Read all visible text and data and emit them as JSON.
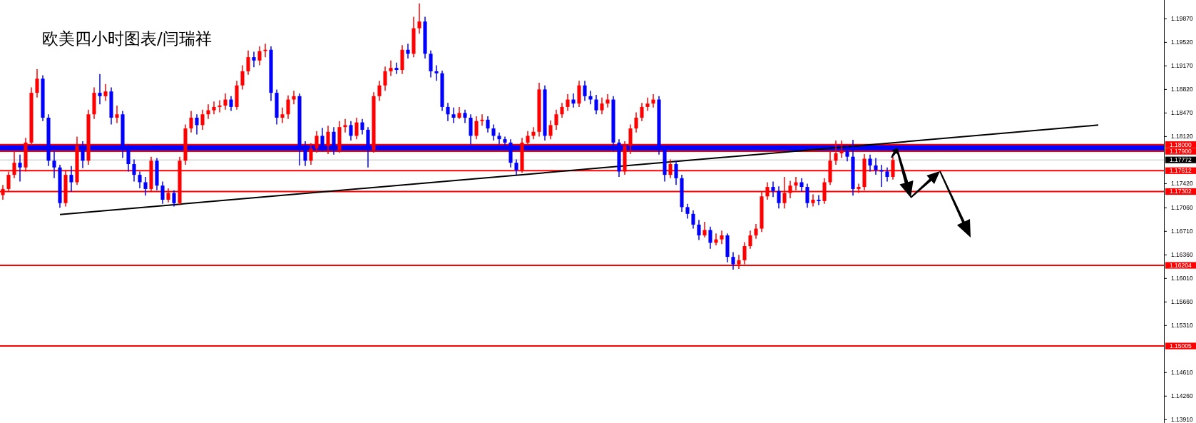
{
  "chart_data": {
    "type": "candlestick",
    "title": "欧美四小时图表/闫瑞祥",
    "categories": [
      null,
      null,
      null,
      null,
      null,
      null,
      null,
      null,
      null,
      null,
      null,
      null,
      null,
      null,
      null,
      null,
      null,
      null,
      null,
      null,
      null,
      null,
      null,
      null,
      null,
      null,
      null,
      null,
      null,
      null,
      null,
      null,
      null,
      null,
      null,
      null,
      null,
      null,
      null,
      null,
      null,
      null,
      null,
      null,
      null,
      null,
      null,
      null,
      null,
      null,
      null,
      null,
      null,
      null,
      null,
      null,
      null,
      null,
      null,
      null,
      null,
      null,
      null,
      null,
      null,
      null,
      null,
      null,
      null,
      null,
      null,
      null,
      null,
      null,
      null,
      null,
      null,
      null,
      null,
      null,
      null,
      null,
      null,
      null,
      null,
      null,
      null,
      null,
      null,
      null,
      null,
      null,
      null,
      null,
      null,
      null,
      null,
      null,
      null,
      null,
      null,
      null,
      null,
      null,
      null,
      null,
      null,
      null,
      null,
      null,
      null,
      null,
      null,
      null,
      null,
      null,
      null,
      null,
      null,
      null,
      null,
      null,
      null,
      null,
      null,
      null,
      null,
      null,
      null,
      null,
      null,
      null,
      null,
      null,
      null,
      null,
      null,
      null,
      null,
      null,
      null,
      null,
      null,
      null,
      null,
      null,
      null,
      null,
      null,
      null,
      null,
      null,
      null,
      null,
      null,
      null,
      null,
      null,
      null,
      null,
      null,
      null,
      null,
      null,
      null,
      null,
      null,
      null,
      null,
      null,
      null,
      null,
      null,
      null,
      null,
      null,
      null,
      null,
      null,
      null,
      null,
      null,
      null,
      null,
      null,
      null,
      null,
      null,
      null,
      null,
      null,
      null,
      null,
      null,
      null,
      null,
      null,
      null,
      null,
      null,
      null,
      null,
      null,
      null
    ],
    "ohlc": [
      [
        1.1725,
        1.174,
        1.1718,
        1.1734
      ],
      [
        1.1734,
        1.176,
        1.173,
        1.1755
      ],
      [
        1.1755,
        1.179,
        1.175,
        1.1773
      ],
      [
        1.1773,
        1.1785,
        1.1745,
        1.1766
      ],
      [
        1.1766,
        1.181,
        1.176,
        1.1803
      ],
      [
        1.1803,
        1.1885,
        1.1798,
        1.1877
      ],
      [
        1.1877,
        1.1912,
        1.187,
        1.1898
      ],
      [
        1.1898,
        1.1903,
        1.1835,
        1.184
      ],
      [
        1.184,
        1.1845,
        1.1768,
        1.1776
      ],
      [
        1.1776,
        1.179,
        1.175,
        1.1766
      ],
      [
        1.1766,
        1.177,
        1.1706,
        1.1713
      ],
      [
        1.1713,
        1.1762,
        1.1708,
        1.1755
      ],
      [
        1.1755,
        1.1768,
        1.173,
        1.1744
      ],
      [
        1.1744,
        1.1812,
        1.174,
        1.1798
      ],
      [
        1.1798,
        1.1805,
        1.1765,
        1.1776
      ],
      [
        1.1776,
        1.1852,
        1.177,
        1.1845
      ],
      [
        1.1845,
        1.1885,
        1.1838,
        1.1877
      ],
      [
        1.1877,
        1.1905,
        1.186,
        1.1872
      ],
      [
        1.1872,
        1.189,
        1.1865,
        1.1879
      ],
      [
        1.1879,
        1.1885,
        1.183,
        1.184
      ],
      [
        1.184,
        1.1858,
        1.1832,
        1.1845
      ],
      [
        1.1845,
        1.185,
        1.178,
        1.1792
      ],
      [
        1.1792,
        1.18,
        1.176,
        1.1771
      ],
      [
        1.1771,
        1.1778,
        1.1745,
        1.1755
      ],
      [
        1.1755,
        1.176,
        1.1735,
        1.1744
      ],
      [
        1.1744,
        1.1752,
        1.1724,
        1.1734
      ],
      [
        1.1734,
        1.1782,
        1.173,
        1.1776
      ],
      [
        1.1776,
        1.178,
        1.1732,
        1.1739
      ],
      [
        1.1739,
        1.1745,
        1.1712,
        1.1718
      ],
      [
        1.1718,
        1.1735,
        1.1714,
        1.1728
      ],
      [
        1.1728,
        1.1732,
        1.1708,
        1.1713
      ],
      [
        1.1713,
        1.1782,
        1.171,
        1.1776
      ],
      [
        1.1776,
        1.183,
        1.177,
        1.1824
      ],
      [
        1.1824,
        1.185,
        1.1818,
        1.184
      ],
      [
        1.184,
        1.1845,
        1.1815,
        1.1829
      ],
      [
        1.1829,
        1.1852,
        1.1822,
        1.1845
      ],
      [
        1.1845,
        1.186,
        1.1838,
        1.1851
      ],
      [
        1.1851,
        1.1864,
        1.1845,
        1.1856
      ],
      [
        1.1856,
        1.1866,
        1.1848,
        1.1858
      ],
      [
        1.1858,
        1.1876,
        1.1852,
        1.1867
      ],
      [
        1.1867,
        1.1872,
        1.185,
        1.1856
      ],
      [
        1.1856,
        1.1895,
        1.1852,
        1.1888
      ],
      [
        1.1888,
        1.1918,
        1.1882,
        1.1909
      ],
      [
        1.1909,
        1.194,
        1.1904,
        1.193
      ],
      [
        1.193,
        1.1938,
        1.1915,
        1.1925
      ],
      [
        1.1925,
        1.1946,
        1.1918,
        1.1939
      ],
      [
        1.1939,
        1.195,
        1.193,
        1.1941
      ],
      [
        1.1941,
        1.1946,
        1.1865,
        1.1877
      ],
      [
        1.1877,
        1.1882,
        1.183,
        1.184
      ],
      [
        1.184,
        1.1855,
        1.1832,
        1.1845
      ],
      [
        1.1845,
        1.1873,
        1.1838,
        1.1867
      ],
      [
        1.1867,
        1.188,
        1.186,
        1.1872
      ],
      [
        1.1872,
        1.1876,
        1.1769,
        1.1798
      ],
      [
        1.1798,
        1.1805,
        1.1768,
        1.1776
      ],
      [
        1.1776,
        1.1802,
        1.177,
        1.1794
      ],
      [
        1.1794,
        1.182,
        1.1788,
        1.1813
      ],
      [
        1.1813,
        1.1825,
        1.179,
        1.1798
      ],
      [
        1.1798,
        1.1828,
        1.1786,
        1.1819
      ],
      [
        1.1819,
        1.1826,
        1.1785,
        1.1792
      ],
      [
        1.1792,
        1.1835,
        1.1788,
        1.1826
      ],
      [
        1.1826,
        1.1838,
        1.1818,
        1.1829
      ],
      [
        1.1829,
        1.1835,
        1.1806,
        1.1813
      ],
      [
        1.1813,
        1.184,
        1.1808,
        1.1833
      ],
      [
        1.1833,
        1.1838,
        1.1815,
        1.1822
      ],
      [
        1.1822,
        1.1826,
        1.1766,
        1.1792
      ],
      [
        1.1792,
        1.1878,
        1.1788,
        1.1872
      ],
      [
        1.1872,
        1.1895,
        1.1865,
        1.1888
      ],
      [
        1.1888,
        1.1916,
        1.188,
        1.1909
      ],
      [
        1.1909,
        1.1925,
        1.1902,
        1.1914
      ],
      [
        1.1914,
        1.1922,
        1.1905,
        1.1911
      ],
      [
        1.1911,
        1.1948,
        1.1905,
        1.1941
      ],
      [
        1.1941,
        1.195,
        1.1928,
        1.1935
      ],
      [
        1.1935,
        1.199,
        1.193,
        1.1973
      ],
      [
        1.1973,
        1.201,
        1.1965,
        1.1983
      ],
      [
        1.1983,
        1.199,
        1.1928,
        1.1935
      ],
      [
        1.1935,
        1.194,
        1.19,
        1.1909
      ],
      [
        1.1909,
        1.1918,
        1.1895,
        1.1906
      ],
      [
        1.1906,
        1.191,
        1.185,
        1.1856
      ],
      [
        1.1856,
        1.1862,
        1.1835,
        1.1845
      ],
      [
        1.1845,
        1.1855,
        1.1832,
        1.184
      ],
      [
        1.184,
        1.1856,
        1.1838,
        1.1847
      ],
      [
        1.1847,
        1.1852,
        1.1832,
        1.184
      ],
      [
        1.184,
        1.1845,
        1.18,
        1.1813
      ],
      [
        1.1813,
        1.1842,
        1.1808,
        1.1835
      ],
      [
        1.1835,
        1.1845,
        1.1828,
        1.1837
      ],
      [
        1.1837,
        1.1842,
        1.1818,
        1.1824
      ],
      [
        1.1824,
        1.183,
        1.1806,
        1.1813
      ],
      [
        1.1813,
        1.1818,
        1.18,
        1.1808
      ],
      [
        1.1808,
        1.1812,
        1.1795,
        1.1803
      ],
      [
        1.1803,
        1.1808,
        1.1766,
        1.1773
      ],
      [
        1.1773,
        1.1778,
        1.1755,
        1.1762
      ],
      [
        1.1762,
        1.181,
        1.1758,
        1.1803
      ],
      [
        1.1803,
        1.182,
        1.1798,
        1.1813
      ],
      [
        1.1813,
        1.1826,
        1.1808,
        1.1819
      ],
      [
        1.1819,
        1.1892,
        1.1812,
        1.1882
      ],
      [
        1.1882,
        1.1888,
        1.1806,
        1.1813
      ],
      [
        1.1813,
        1.1836,
        1.1808,
        1.1829
      ],
      [
        1.1829,
        1.1852,
        1.1822,
        1.1845
      ],
      [
        1.1845,
        1.1862,
        1.184,
        1.1856
      ],
      [
        1.1856,
        1.1875,
        1.185,
        1.1867
      ],
      [
        1.1867,
        1.1876,
        1.1855,
        1.1861
      ],
      [
        1.1861,
        1.1895,
        1.1856,
        1.1888
      ],
      [
        1.1888,
        1.1895,
        1.1865,
        1.1872
      ],
      [
        1.1872,
        1.188,
        1.186,
        1.1867
      ],
      [
        1.1867,
        1.1874,
        1.1845,
        1.1851
      ],
      [
        1.1851,
        1.187,
        1.1845,
        1.1861
      ],
      [
        1.1861,
        1.1875,
        1.1855,
        1.1867
      ],
      [
        1.1867,
        1.1872,
        1.179,
        1.1803
      ],
      [
        1.1803,
        1.1808,
        1.1752,
        1.176
      ],
      [
        1.176,
        1.1805,
        1.1755,
        1.1798
      ],
      [
        1.1798,
        1.183,
        1.1786,
        1.1824
      ],
      [
        1.1824,
        1.1848,
        1.1818,
        1.184
      ],
      [
        1.184,
        1.1862,
        1.1835,
        1.1856
      ],
      [
        1.1856,
        1.187,
        1.185,
        1.1861
      ],
      [
        1.1861,
        1.1875,
        1.1855,
        1.1867
      ],
      [
        1.1867,
        1.1872,
        1.1785,
        1.1792
      ],
      [
        1.1792,
        1.1798,
        1.1745,
        1.1755
      ],
      [
        1.1755,
        1.1778,
        1.175,
        1.1771
      ],
      [
        1.1771,
        1.1776,
        1.174,
        1.175
      ],
      [
        1.175,
        1.1755,
        1.17,
        1.1707
      ],
      [
        1.1707,
        1.1712,
        1.169,
        1.1697
      ],
      [
        1.1697,
        1.1702,
        1.1675,
        1.1681
      ],
      [
        1.1681,
        1.1688,
        1.1658,
        1.1665
      ],
      [
        1.1665,
        1.1685,
        1.1662,
        1.1673
      ],
      [
        1.1673,
        1.1678,
        1.1645,
        1.1654
      ],
      [
        1.1654,
        1.1668,
        1.165,
        1.1659
      ],
      [
        1.1659,
        1.1672,
        1.1652,
        1.1665
      ],
      [
        1.1665,
        1.1668,
        1.1625,
        1.1633
      ],
      [
        1.1633,
        1.164,
        1.1614,
        1.1622
      ],
      [
        1.1622,
        1.1636,
        1.1615,
        1.1628
      ],
      [
        1.1628,
        1.1655,
        1.1622,
        1.1649
      ],
      [
        1.1649,
        1.1672,
        1.1645,
        1.1665
      ],
      [
        1.1665,
        1.1682,
        1.166,
        1.1675
      ],
      [
        1.1675,
        1.173,
        1.167,
        1.1723
      ],
      [
        1.1723,
        1.1744,
        1.1718,
        1.1737
      ],
      [
        1.1737,
        1.1745,
        1.1722,
        1.1731
      ],
      [
        1.1731,
        1.1738,
        1.1705,
        1.1713
      ],
      [
        1.1713,
        1.1752,
        1.1705,
        1.1728
      ],
      [
        1.1728,
        1.1746,
        1.172,
        1.1739
      ],
      [
        1.1739,
        1.1752,
        1.1732,
        1.1744
      ],
      [
        1.1744,
        1.175,
        1.173,
        1.1737
      ],
      [
        1.1737,
        1.1742,
        1.1706,
        1.1713
      ],
      [
        1.1713,
        1.1726,
        1.1708,
        1.1718
      ],
      [
        1.1718,
        1.1725,
        1.171,
        1.1716
      ],
      [
        1.1716,
        1.175,
        1.1712,
        1.1744
      ],
      [
        1.1744,
        1.179,
        1.174,
        1.1776
      ],
      [
        1.1776,
        1.1806,
        1.177,
        1.1787
      ],
      [
        1.1787,
        1.1806,
        1.178,
        1.179
      ],
      [
        1.179,
        1.1798,
        1.1775,
        1.1782
      ],
      [
        1.1782,
        1.1807,
        1.1724,
        1.1734
      ],
      [
        1.1734,
        1.1742,
        1.1728,
        1.1737
      ],
      [
        1.1737,
        1.1786,
        1.1732,
        1.1779
      ],
      [
        1.1779,
        1.1785,
        1.176,
        1.1769
      ],
      [
        1.1769,
        1.178,
        1.1755,
        1.1762
      ],
      [
        1.1762,
        1.177,
        1.1737,
        1.176
      ],
      [
        1.176,
        1.1766,
        1.1745,
        1.1752
      ],
      [
        1.1752,
        1.1782,
        1.1748,
        1.1777
      ],
      null,
      null,
      null,
      null,
      null,
      null,
      null,
      null,
      null,
      null,
      null,
      null,
      null,
      null,
      null,
      null,
      null,
      null,
      null,
      null,
      null,
      null,
      null,
      null,
      null,
      null,
      null,
      null,
      null,
      null,
      null,
      null,
      null,
      null,
      null,
      null,
      null,
      null,
      null,
      null,
      null,
      null,
      null,
      null,
      null,
      null,
      null
    ],
    "series": [
      {
        "type": "line",
        "color": "#000000",
        "values": [
          null,
          null,
          null,
          null,
          null,
          null,
          null,
          null,
          null,
          null,
          1.1696,
          null,
          null,
          null,
          null,
          null,
          null,
          null,
          null,
          null,
          null,
          null,
          null,
          null,
          null,
          null,
          null,
          null,
          null,
          null,
          null,
          null,
          null,
          null,
          null,
          null,
          null,
          null,
          null,
          null,
          null,
          null,
          null,
          null,
          null,
          null,
          null,
          null,
          null,
          null,
          null,
          null,
          null,
          null,
          null,
          null,
          null,
          null,
          null,
          null,
          null,
          null,
          null,
          null,
          null,
          null,
          null,
          null,
          null,
          null,
          null,
          null,
          null,
          null,
          null,
          null,
          null,
          null,
          null,
          null,
          null,
          null,
          null,
          null,
          null,
          null,
          null,
          null,
          null,
          null,
          null,
          null,
          null,
          null,
          null,
          null,
          null,
          null,
          null,
          null,
          null,
          null,
          null,
          null,
          null,
          null,
          null,
          null,
          null,
          null,
          null,
          null,
          null,
          null,
          null,
          null,
          null,
          null,
          null,
          null,
          null,
          null,
          null,
          null,
          null,
          null,
          null,
          null,
          null,
          null,
          null,
          null,
          null,
          null,
          null,
          null,
          null,
          null,
          null,
          null,
          null,
          null,
          null,
          null,
          null,
          null,
          null,
          null,
          null,
          null,
          null,
          null,
          null,
          null,
          null,
          null,
          null,
          null,
          null,
          null,
          null,
          null,
          null,
          null,
          null,
          null,
          null,
          null,
          null,
          null,
          null,
          null,
          null,
          null,
          null,
          null,
          null,
          null,
          null,
          null,
          null,
          null,
          null,
          null,
          null,
          null,
          null,
          null,
          null,
          null,
          null,
          null,
          1.1829,
          null,
          null,
          null,
          null,
          null,
          null,
          null,
          null,
          null,
          null,
          null
        ]
      }
    ],
    "ylim": [
      1.1386,
      1.2015
    ],
    "yticks": [
      {
        "value": 1.1987,
        "label": "1.19870"
      },
      {
        "value": 1.1952,
        "label": "1.19520"
      },
      {
        "value": 1.1917,
        "label": "1.19170"
      },
      {
        "value": 1.1882,
        "label": "1.18820"
      },
      {
        "value": 1.1847,
        "label": "1.18470"
      },
      {
        "value": 1.1812,
        "label": "1.18120"
      },
      {
        "value": 1.1742,
        "label": "1.17420"
      },
      {
        "value": 1.1706,
        "label": "1.17060"
      },
      {
        "value": 1.1671,
        "label": "1.16710"
      },
      {
        "value": 1.1636,
        "label": "1.16360"
      },
      {
        "value": 1.1601,
        "label": "1.16010"
      },
      {
        "value": 1.1566,
        "label": "1.15660"
      },
      {
        "value": 1.1531,
        "label": "1.15310"
      },
      {
        "value": 1.1461,
        "label": "1.14610"
      },
      {
        "value": 1.1426,
        "label": "1.14260"
      },
      {
        "value": 1.1391,
        "label": "1.13910"
      }
    ],
    "bands": [
      {
        "axis": "y",
        "from": 1.179,
        "to": 1.18,
        "color": "#0000ff"
      }
    ],
    "ref_lines": [
      {
        "axis": "y",
        "value": 1.18,
        "label": "1.18000",
        "color": "#ff0000"
      },
      {
        "axis": "y",
        "value": 1.179,
        "label": "1.17900",
        "color": "#ff0000"
      },
      {
        "axis": "y",
        "value": 1.17772,
        "label": "1.17772",
        "color": "#c0c0c0"
      },
      {
        "axis": "y",
        "value": 1.17612,
        "label": "1.17612",
        "color": "#ff0000"
      },
      {
        "axis": "y",
        "value": 1.17302,
        "label": "1.17302",
        "color": "#ff0000"
      },
      {
        "axis": "y",
        "value": 1.16204,
        "label": "1.16204",
        "color": "#ff0000"
      },
      {
        "axis": "y",
        "value": 1.15005,
        "label": "1.15005",
        "color": "#ff0000"
      }
    ],
    "tick_labels": "y",
    "grid": false
  }
}
